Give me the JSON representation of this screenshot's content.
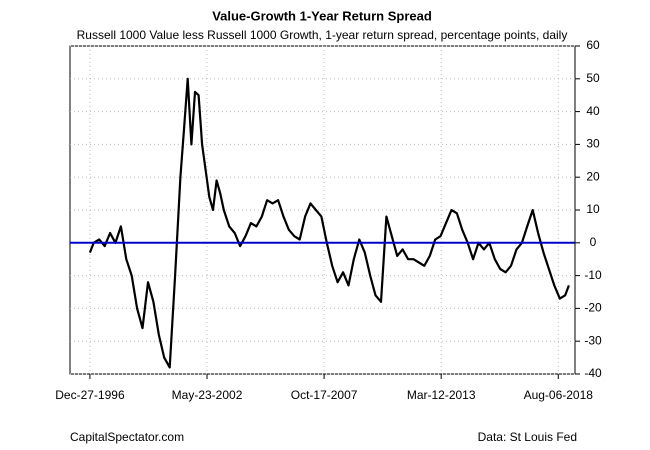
{
  "chart_data": {
    "type": "line",
    "title": "Value-Growth 1-Year Return Spread",
    "subtitle": "Russell 1000 Value less Russell 1000 Growth, 1-year return spread, percentage points, daily",
    "source_left": "CapitalSpectator.com",
    "source_right": "Data: St Louis Fed",
    "x": [
      "1996-12-27",
      "1997-03-01",
      "1997-06-01",
      "1997-09-01",
      "1997-12-01",
      "1998-03-01",
      "1998-06-01",
      "1998-09-01",
      "1998-12-01",
      "1999-03-01",
      "1999-06-01",
      "1999-09-01",
      "1999-12-01",
      "2000-03-01",
      "2000-06-01",
      "2000-09-01",
      "2000-12-01",
      "2001-03-01",
      "2001-05-01",
      "2001-07-01",
      "2001-09-01",
      "2001-11-01",
      "2002-01-01",
      "2002-03-01",
      "2002-05-01",
      "2002-07-01",
      "2002-09-01",
      "2002-11-01",
      "2003-01-01",
      "2003-03-01",
      "2003-06-01",
      "2003-09-01",
      "2003-12-01",
      "2004-03-01",
      "2004-06-01",
      "2004-09-01",
      "2004-12-01",
      "2005-03-01",
      "2005-06-01",
      "2005-09-01",
      "2005-12-01",
      "2006-03-01",
      "2006-06-01",
      "2006-09-01",
      "2006-12-01",
      "2007-03-01",
      "2007-06-01",
      "2007-09-01",
      "2007-12-01",
      "2008-03-01",
      "2008-06-01",
      "2008-09-01",
      "2008-12-01",
      "2009-03-01",
      "2009-06-01",
      "2009-09-01",
      "2009-12-01",
      "2010-03-01",
      "2010-06-01",
      "2010-09-01",
      "2010-12-01",
      "2011-03-01",
      "2011-06-01",
      "2011-09-01",
      "2011-12-01",
      "2012-03-01",
      "2012-06-01",
      "2012-09-01",
      "2012-12-01",
      "2013-03-01",
      "2013-06-01",
      "2013-09-01",
      "2013-12-01",
      "2014-03-01",
      "2014-06-01",
      "2014-09-01",
      "2014-12-01",
      "2015-03-01",
      "2015-06-01",
      "2015-09-01",
      "2015-12-01",
      "2016-03-01",
      "2016-06-01",
      "2016-09-01",
      "2016-12-01",
      "2017-03-01",
      "2017-06-01",
      "2017-09-01",
      "2017-12-01",
      "2018-03-01",
      "2018-06-01",
      "2018-09-01",
      "2018-12-01",
      "2019-02-01"
    ],
    "series": [
      {
        "name": "Value-Growth spread",
        "color": "#000000",
        "values": [
          -3,
          0,
          1,
          -1,
          3,
          0,
          5,
          -5,
          -10,
          -20,
          -26,
          -12,
          -18,
          -28,
          -35,
          -38,
          -10,
          20,
          35,
          50,
          30,
          46,
          45,
          30,
          22,
          14,
          10,
          19,
          15,
          10,
          5,
          3,
          -1,
          2,
          6,
          5,
          8,
          13,
          12,
          13,
          8,
          4,
          2,
          1,
          8,
          12,
          10,
          8,
          0,
          -7,
          -12,
          -9,
          -13,
          -5,
          1,
          -3,
          -10,
          -16,
          -18,
          8,
          2,
          -4,
          -2,
          -5,
          -5,
          -6,
          -7,
          -4,
          1,
          2,
          6,
          10,
          9,
          4,
          0,
          -5,
          0,
          -2,
          0,
          -5,
          -8,
          -9,
          -7,
          -2,
          0,
          5,
          10,
          3,
          -3,
          -8,
          -13,
          -17,
          -16,
          -13
        ]
      }
    ],
    "reference_line": {
      "value": 0,
      "color": "#0000cc"
    },
    "xlim": [
      "1996-01-26",
      "2019-05-15"
    ],
    "xticks": [
      {
        "value": "1996-12-27",
        "label": "Dec-27-1996"
      },
      {
        "value": "2002-05-23",
        "label": "May-23-2002"
      },
      {
        "value": "2007-10-17",
        "label": "Oct-17-2007"
      },
      {
        "value": "2013-03-12",
        "label": "Mar-12-2013"
      },
      {
        "value": "2018-08-06",
        "label": "Aug-06-2018"
      }
    ],
    "ylim": [
      -40,
      60
    ],
    "yticks": [
      -40,
      -30,
      -20,
      -10,
      0,
      10,
      20,
      30,
      40,
      50,
      60
    ],
    "grid": true
  }
}
